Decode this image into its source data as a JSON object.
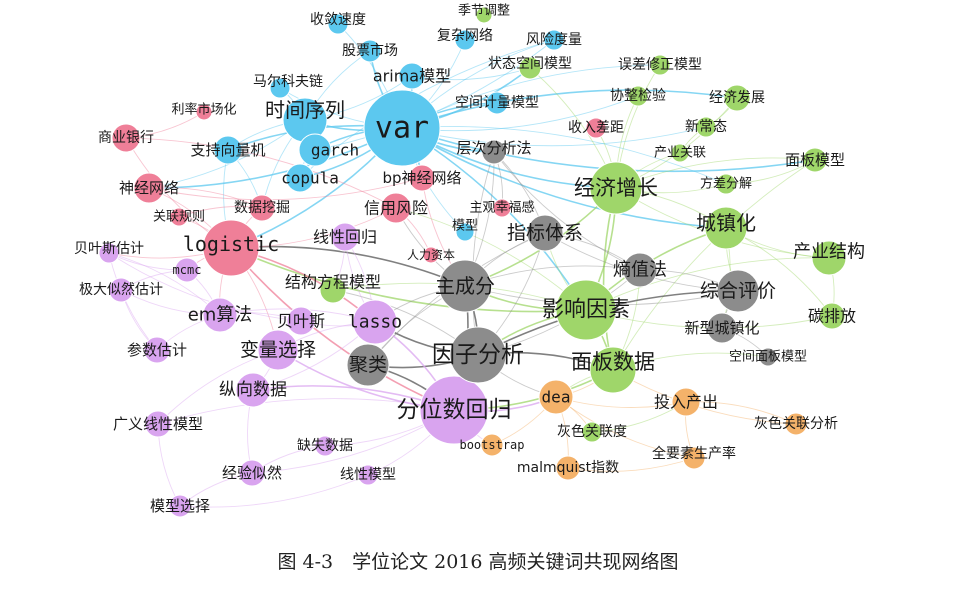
{
  "caption": "图 4-3　学位论文 2016 高频关键词共现网络图",
  "colors": {
    "blue": "#5cc8ef",
    "pink": "#ef7f98",
    "purple": "#d9a4ef",
    "gray": "#8c8c8c",
    "green": "#9fd66a",
    "orange": "#f4b26a"
  },
  "nodes": [
    {
      "id": "var",
      "label": "var",
      "group": "blue",
      "size": 38,
      "mono": true
    },
    {
      "id": "sxl",
      "label": "时间序列",
      "group": "blue",
      "size": 22
    },
    {
      "id": "garch",
      "label": "garch",
      "group": "blue",
      "size": 16,
      "mono": true
    },
    {
      "id": "copula",
      "label": "copula",
      "group": "blue",
      "size": 14,
      "mono": true
    },
    {
      "id": "arima",
      "label": "arima模型",
      "group": "blue",
      "size": 13
    },
    {
      "id": "gpsc",
      "label": "股票市场",
      "group": "blue",
      "size": 11
    },
    {
      "id": "slsd",
      "label": "收敛速度",
      "group": "blue",
      "size": 10
    },
    {
      "id": "fzwl",
      "label": "复杂网络",
      "group": "blue",
      "size": 10
    },
    {
      "id": "fxdl",
      "label": "风险度量",
      "group": "blue",
      "size": 10
    },
    {
      "id": "mekf",
      "label": "马尔科夫链",
      "group": "blue",
      "size": 10
    },
    {
      "id": "zcxlj",
      "label": "支持向量机",
      "group": "blue",
      "size": 14
    },
    {
      "id": "kjjl",
      "label": "空间计量模型",
      "group": "blue",
      "size": 11
    },
    {
      "id": "mx",
      "label": "模型",
      "group": "blue",
      "size": 9
    },
    {
      "id": "jjtz",
      "label": "季节调整",
      "group": "green",
      "size": 8
    },
    {
      "id": "ztkj",
      "label": "状态空间模型",
      "group": "green",
      "size": 11
    },
    {
      "id": "wcxz",
      "label": "误差修正模型",
      "group": "green",
      "size": 10
    },
    {
      "id": "xzjy",
      "label": "协整检验",
      "group": "green",
      "size": 10
    },
    {
      "id": "jjfz",
      "label": "经济发展",
      "group": "green",
      "size": 13
    },
    {
      "id": "xct",
      "label": "新常态",
      "group": "green",
      "size": 10
    },
    {
      "id": "cygl",
      "label": "产业关联",
      "group": "green",
      "size": 9
    },
    {
      "id": "mbmx",
      "label": "面板模型",
      "group": "green",
      "size": 12
    },
    {
      "id": "fcfj",
      "label": "方差分解",
      "group": "green",
      "size": 10
    },
    {
      "id": "jjzz",
      "label": "经济增长",
      "group": "green",
      "size": 26
    },
    {
      "id": "czh",
      "label": "城镇化",
      "group": "green",
      "size": 21
    },
    {
      "id": "cyjg",
      "label": "产业结构",
      "group": "green",
      "size": 17
    },
    {
      "id": "tpf",
      "label": "碳排放",
      "group": "green",
      "size": 13
    },
    {
      "id": "yxys",
      "label": "影响因素",
      "group": "green",
      "size": 30
    },
    {
      "id": "mbsj",
      "label": "面板数据",
      "group": "green",
      "size": 23
    },
    {
      "id": "jgfc",
      "label": "结构方程模型",
      "group": "green",
      "size": 13
    },
    {
      "id": "hsglhd",
      "label": "灰色关联度",
      "group": "green",
      "size": 10
    },
    {
      "id": "llsc",
      "label": "利率市场化",
      "group": "pink",
      "size": 8
    },
    {
      "id": "syyh",
      "label": "商业银行",
      "group": "pink",
      "size": 14
    },
    {
      "id": "sjwl",
      "label": "神经网络",
      "group": "pink",
      "size": 15
    },
    {
      "id": "gzgz",
      "label": "关联规则",
      "group": "pink",
      "size": 9
    },
    {
      "id": "sjwj",
      "label": "数据挖掘",
      "group": "pink",
      "size": 13
    },
    {
      "id": "logistic",
      "label": "logistic",
      "group": "pink",
      "size": 28,
      "mono": true
    },
    {
      "id": "bpsj",
      "label": "bp神经网络",
      "group": "pink",
      "size": 13
    },
    {
      "id": "xyfx",
      "label": "信用风险",
      "group": "pink",
      "size": 15
    },
    {
      "id": "srcj",
      "label": "收入差距",
      "group": "pink",
      "size": 10
    },
    {
      "id": "zgxf",
      "label": "主观幸福感",
      "group": "pink",
      "size": 9
    },
    {
      "id": "rlzb",
      "label": "人力资本",
      "group": "pink",
      "size": 8
    },
    {
      "id": "byqgj",
      "label": "贝叶斯估计",
      "group": "purple",
      "size": 10
    },
    {
      "id": "mcmc",
      "label": "mcmc",
      "group": "purple",
      "size": 12,
      "mono": true
    },
    {
      "id": "jdsr",
      "label": "极大似然估计",
      "group": "purple",
      "size": 12
    },
    {
      "id": "em",
      "label": "em算法",
      "group": "purple",
      "size": 17
    },
    {
      "id": "bys",
      "label": "贝叶斯",
      "group": "purple",
      "size": 14
    },
    {
      "id": "lasso",
      "label": "lasso",
      "group": "purple",
      "size": 22,
      "mono": true
    },
    {
      "id": "xxhg",
      "label": "线性回归",
      "group": "purple",
      "size": 14
    },
    {
      "id": "csgj",
      "label": "参数估计",
      "group": "purple",
      "size": 13
    },
    {
      "id": "blxz",
      "label": "变量选择",
      "group": "purple",
      "size": 20
    },
    {
      "id": "zxsj",
      "label": "纵向数据",
      "group": "purple",
      "size": 17
    },
    {
      "id": "fwshg",
      "label": "分位数回归",
      "group": "purple",
      "size": 34
    },
    {
      "id": "gyxx",
      "label": "广义线性模型",
      "group": "purple",
      "size": 13
    },
    {
      "id": "qssj",
      "label": "缺失数据",
      "group": "purple",
      "size": 10
    },
    {
      "id": "jysr",
      "label": "经验似然",
      "group": "purple",
      "size": 13
    },
    {
      "id": "xxmx",
      "label": "线性模型",
      "group": "purple",
      "size": 10
    },
    {
      "id": "mxxz",
      "label": "模型选择",
      "group": "purple",
      "size": 11
    },
    {
      "id": "ccfx",
      "label": "层次分析法",
      "group": "gray",
      "size": 12
    },
    {
      "id": "zbtx",
      "label": "指标体系",
      "group": "gray",
      "size": 18
    },
    {
      "id": "zcf",
      "label": "主成分",
      "group": "gray",
      "size": 26
    },
    {
      "id": "yzfx",
      "label": "因子分析",
      "group": "gray",
      "size": 28
    },
    {
      "id": "jl",
      "label": "聚类",
      "group": "gray",
      "size": 21
    },
    {
      "id": "szf",
      "label": "熵值法",
      "group": "gray",
      "size": 17
    },
    {
      "id": "zhpj",
      "label": "综合评价",
      "group": "gray",
      "size": 21
    },
    {
      "id": "xxczh",
      "label": "新型城镇化",
      "group": "gray",
      "size": 15
    },
    {
      "id": "kjmb",
      "label": "空间面板模型",
      "group": "gray",
      "size": 9
    },
    {
      "id": "dea",
      "label": "dea",
      "group": "orange",
      "size": 17,
      "mono": true
    },
    {
      "id": "bootstrap",
      "label": "bootstrap",
      "group": "orange",
      "size": 11,
      "mono": true
    },
    {
      "id": "trcc",
      "label": "投入产出",
      "group": "orange",
      "size": 14
    },
    {
      "id": "hsglfx",
      "label": "灰色关联分析",
      "group": "orange",
      "size": 11
    },
    {
      "id": "qys",
      "label": "全要素生产率",
      "group": "orange",
      "size": 11
    },
    {
      "id": "malm",
      "label": "malmquist指数",
      "group": "orange",
      "size": 12
    }
  ],
  "edges": [
    [
      "var",
      "sxl"
    ],
    [
      "var",
      "garch"
    ],
    [
      "var",
      "copula"
    ],
    [
      "var",
      "arima"
    ],
    [
      "var",
      "gpsc"
    ],
    [
      "var",
      "fzwl"
    ],
    [
      "var",
      "fxdl"
    ],
    [
      "var",
      "slsd"
    ],
    [
      "var",
      "mekf"
    ],
    [
      "var",
      "zcxlj"
    ],
    [
      "var",
      "kjjl"
    ],
    [
      "var",
      "jjzz"
    ],
    [
      "var",
      "bpsj"
    ],
    [
      "var",
      "ztkj"
    ],
    [
      "var",
      "fcfj"
    ],
    [
      "var",
      "xzjy"
    ],
    [
      "var",
      "wcxz"
    ],
    [
      "var",
      "mx"
    ],
    [
      "var",
      "yxys"
    ],
    [
      "var",
      "czh"
    ],
    [
      "var",
      "jjfz"
    ],
    [
      "var",
      "mbmx"
    ],
    [
      "var",
      "logistic"
    ],
    [
      "var",
      "ccfx"
    ],
    [
      "var",
      "sjwl"
    ],
    [
      "var",
      "xct"
    ],
    [
      "sxl",
      "garch"
    ],
    [
      "sxl",
      "arima"
    ],
    [
      "sxl",
      "copula"
    ],
    [
      "sxl",
      "zcxlj"
    ],
    [
      "sxl",
      "sjwl"
    ],
    [
      "sxl",
      "mekf"
    ],
    [
      "sxl",
      "gpsc"
    ],
    [
      "sxl",
      "sjwj"
    ],
    [
      "garch",
      "copula"
    ],
    [
      "garch",
      "fxdl"
    ],
    [
      "copula",
      "fxdl"
    ],
    [
      "arima",
      "ztkj"
    ],
    [
      "zcxlj",
      "sjwj"
    ],
    [
      "zcxlj",
      "logistic"
    ],
    [
      "bpsj",
      "sjwl"
    ],
    [
      "bpsj",
      "zcf"
    ],
    [
      "jjzz",
      "czh"
    ],
    [
      "jjzz",
      "cyjg"
    ],
    [
      "jjzz",
      "yxys"
    ],
    [
      "jjzz",
      "mbsj"
    ],
    [
      "jjzz",
      "xzjy"
    ],
    [
      "jjzz",
      "fcfj"
    ],
    [
      "jjzz",
      "wcxz"
    ],
    [
      "jjzz",
      "jjfz"
    ],
    [
      "jjzz",
      "mbmx"
    ],
    [
      "jjzz",
      "ztkj"
    ],
    [
      "jjzz",
      "cygl"
    ],
    [
      "jjzz",
      "srcj"
    ],
    [
      "jjzz",
      "zcf"
    ],
    [
      "czh",
      "cyjg"
    ],
    [
      "czh",
      "tpf"
    ],
    [
      "czh",
      "yxys"
    ],
    [
      "czh",
      "xxczh"
    ],
    [
      "czh",
      "zhpj"
    ],
    [
      "yxys",
      "mbsj"
    ],
    [
      "yxys",
      "tpf"
    ],
    [
      "yxys",
      "zcf"
    ],
    [
      "yxys",
      "yzfx"
    ],
    [
      "yxys",
      "zbtx"
    ],
    [
      "yxys",
      "jgfc"
    ],
    [
      "yxys",
      "logistic"
    ],
    [
      "yxys",
      "xyfx"
    ],
    [
      "mbsj",
      "fwshg"
    ],
    [
      "mbsj",
      "dea"
    ],
    [
      "mbsj",
      "kjmb"
    ],
    [
      "mbsj",
      "szf"
    ],
    [
      "cyjg",
      "tpf"
    ],
    [
      "cyjg",
      "yxys"
    ],
    [
      "jjfz",
      "xct"
    ],
    [
      "xct",
      "cygl"
    ],
    [
      "mbmx",
      "fcfj"
    ],
    [
      "mbmx",
      "mbsj"
    ],
    [
      "zcf",
      "yzfx"
    ],
    [
      "zcf",
      "jl"
    ],
    [
      "zcf",
      "zbtx"
    ],
    [
      "zcf",
      "ccfx"
    ],
    [
      "zcf",
      "xyfx"
    ],
    [
      "zcf",
      "lasso"
    ],
    [
      "zcf",
      "szf"
    ],
    [
      "zcf",
      "zhpj"
    ],
    [
      "zcf",
      "fwshg"
    ],
    [
      "zcf",
      "logistic"
    ],
    [
      "yzfx",
      "jl"
    ],
    [
      "yzfx",
      "zbtx"
    ],
    [
      "yzfx",
      "zhpj"
    ],
    [
      "yzfx",
      "szf"
    ],
    [
      "yzfx",
      "ccfx"
    ],
    [
      "yzfx",
      "dea"
    ],
    [
      "yzfx",
      "mbsj"
    ],
    [
      "yzfx",
      "fwshg"
    ],
    [
      "yzfx",
      "lasso"
    ],
    [
      "yzfx",
      "jgfc"
    ],
    [
      "jl",
      "zbtx"
    ],
    [
      "jl",
      "lasso"
    ],
    [
      "jl",
      "fwshg"
    ],
    [
      "zbtx",
      "ccfx"
    ],
    [
      "zbtx",
      "szf"
    ],
    [
      "zbtx",
      "zhpj"
    ],
    [
      "szf",
      "zhpj"
    ],
    [
      "zhpj",
      "xxczh"
    ],
    [
      "ccfx",
      "zgxf"
    ],
    [
      "ccfx",
      "szf"
    ],
    [
      "xxczh",
      "kjmb"
    ],
    [
      "logistic",
      "sjwl"
    ],
    [
      "logistic",
      "sjwj"
    ],
    [
      "logistic",
      "xyfx"
    ],
    [
      "logistic",
      "syyh"
    ],
    [
      "logistic",
      "gzgz"
    ],
    [
      "logistic",
      "lasso"
    ],
    [
      "logistic",
      "em"
    ],
    [
      "logistic",
      "byqgj"
    ],
    [
      "logistic",
      "mcmc"
    ],
    [
      "logistic",
      "blxz"
    ],
    [
      "logistic",
      "fwshg"
    ],
    [
      "syyh",
      "xyfx"
    ],
    [
      "syyh",
      "llsc"
    ],
    [
      "sjwl",
      "sjwj"
    ],
    [
      "sjwj",
      "gzgz"
    ],
    [
      "xyfx",
      "rlzb"
    ],
    [
      "lasso",
      "blxz"
    ],
    [
      "lasso",
      "fwshg"
    ],
    [
      "lasso",
      "em"
    ],
    [
      "lasso",
      "bys"
    ],
    [
      "lasso",
      "xxhg"
    ],
    [
      "lasso",
      "zxsj"
    ],
    [
      "em",
      "mcmc"
    ],
    [
      "em",
      "jdsr"
    ],
    [
      "em",
      "csgj"
    ],
    [
      "em",
      "bys"
    ],
    [
      "em",
      "byqgj"
    ],
    [
      "mcmc",
      "byqgj"
    ],
    [
      "mcmc",
      "jdsr"
    ],
    [
      "bys",
      "byqgj"
    ],
    [
      "blxz",
      "fwshg"
    ],
    [
      "blxz",
      "zxsj"
    ],
    [
      "blxz",
      "gyxx"
    ],
    [
      "zxsj",
      "fwshg"
    ],
    [
      "zxsj",
      "jysr"
    ],
    [
      "fwshg",
      "qssj"
    ],
    [
      "fwshg",
      "bootstrap"
    ],
    [
      "fwshg",
      "xxmx"
    ],
    [
      "fwshg",
      "gyxx"
    ],
    [
      "fwshg",
      "jysr"
    ],
    [
      "fwshg",
      "dea"
    ],
    [
      "jysr",
      "qssj"
    ],
    [
      "jysr",
      "mxxz"
    ],
    [
      "xxmx",
      "mxxz"
    ],
    [
      "gyxx",
      "mxxz"
    ],
    [
      "csgj",
      "jdsr"
    ],
    [
      "byqgj",
      "csgj"
    ],
    [
      "xxhg",
      "jgfc"
    ],
    [
      "xxhg",
      "lasso"
    ],
    [
      "dea",
      "bootstrap"
    ],
    [
      "dea",
      "trcc"
    ],
    [
      "dea",
      "malm"
    ],
    [
      "dea",
      "qys"
    ],
    [
      "dea",
      "hsglhd"
    ],
    [
      "dea",
      "mbsj"
    ],
    [
      "trcc",
      "hsglfx"
    ],
    [
      "trcc",
      "qys"
    ],
    [
      "qys",
      "malm"
    ],
    [
      "hsglhd",
      "trcc"
    ],
    [
      "hsglfx",
      "mbsj"
    ]
  ]
}
